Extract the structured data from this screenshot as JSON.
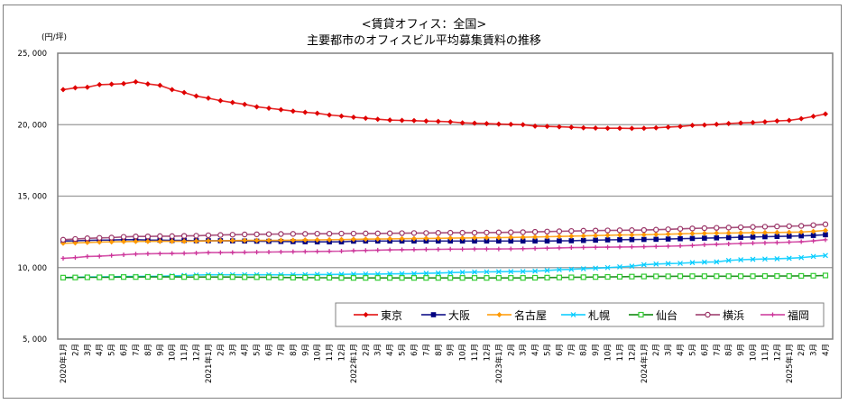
{
  "chart_data": {
    "type": "line",
    "title": "<賃貸オフィス：全国>",
    "subtitle": "主要都市のオフィスビル平均募集賃料の推移",
    "ylabel": "(円/坪)",
    "xlabel": "",
    "ylim": [
      5000,
      25000
    ],
    "yticks": [
      5000,
      10000,
      15000,
      20000,
      25000
    ],
    "ytick_labels": [
      "5, 000",
      "10, 000",
      "15, 000",
      "20, 000",
      "25, 000"
    ],
    "grid": "horizontal major",
    "legend_position": "bottom-right inside plot",
    "x": [
      "2020年1月",
      "2月",
      "3月",
      "4月",
      "5月",
      "6月",
      "7月",
      "8月",
      "9月",
      "10月",
      "11月",
      "12月",
      "2021年1月",
      "2月",
      "3月",
      "4月",
      "5月",
      "6月",
      "7月",
      "8月",
      "9月",
      "10月",
      "11月",
      "12月",
      "2022年1月",
      "2月",
      "3月",
      "4月",
      "5月",
      "6月",
      "7月",
      "8月",
      "9月",
      "10月",
      "11月",
      "12月",
      "2023年1月",
      "2月",
      "3月",
      "4月",
      "5月",
      "6月",
      "7月",
      "8月",
      "9月",
      "10月",
      "11月",
      "12月",
      "2024年1月",
      "2月",
      "3月",
      "4月",
      "5月",
      "6月",
      "7月",
      "8月",
      "9月",
      "10月",
      "11月",
      "12月",
      "2025年1月",
      "2月",
      "3月",
      "4月"
    ],
    "series": [
      {
        "name": "東京",
        "color": "#e00000",
        "marker": "diamond",
        "values": [
          22450,
          22580,
          22620,
          22800,
          22830,
          22870,
          23000,
          22850,
          22750,
          22450,
          22250,
          22000,
          21850,
          21680,
          21550,
          21420,
          21250,
          21150,
          21050,
          20950,
          20870,
          20800,
          20680,
          20600,
          20520,
          20450,
          20380,
          20320,
          20300,
          20280,
          20250,
          20230,
          20200,
          20130,
          20100,
          20070,
          20040,
          20020,
          20000,
          19900,
          19880,
          19850,
          19820,
          19780,
          19760,
          19750,
          19750,
          19740,
          19750,
          19780,
          19830,
          19870,
          19950,
          19980,
          20020,
          20080,
          20120,
          20150,
          20200,
          20260,
          20300,
          20420,
          20580,
          20750
        ]
      },
      {
        "name": "大阪",
        "color": "#000080",
        "marker": "square",
        "values": [
          11850,
          11880,
          11900,
          11920,
          11930,
          11950,
          11950,
          11930,
          11920,
          11900,
          11900,
          11880,
          11880,
          11880,
          11870,
          11860,
          11850,
          11840,
          11830,
          11820,
          11810,
          11800,
          11800,
          11800,
          11850,
          11860,
          11860,
          11860,
          11860,
          11860,
          11860,
          11860,
          11860,
          11860,
          11860,
          11860,
          11860,
          11860,
          11860,
          11860,
          11860,
          11870,
          11880,
          11900,
          11920,
          11940,
          11950,
          11960,
          11970,
          11980,
          12000,
          12020,
          12040,
          12060,
          12080,
          12100,
          12120,
          12140,
          12160,
          12180,
          12200,
          12220,
          12250,
          12300
        ]
      },
      {
        "name": "名古屋",
        "color": "#ff9900",
        "marker": "diamond",
        "values": [
          11700,
          11730,
          11760,
          11780,
          11800,
          11820,
          11830,
          11830,
          11840,
          11840,
          11840,
          11850,
          11870,
          11880,
          11890,
          11900,
          11900,
          11900,
          11910,
          11920,
          11930,
          11940,
          11950,
          11960,
          11980,
          11990,
          12000,
          12010,
          12020,
          12030,
          12040,
          12050,
          12060,
          12070,
          12080,
          12090,
          12100,
          12110,
          12120,
          12140,
          12160,
          12180,
          12200,
          12220,
          12240,
          12260,
          12280,
          12290,
          12300,
          12320,
          12340,
          12360,
          12380,
          12400,
          12410,
          12420,
          12430,
          12440,
          12450,
          12460,
          12470,
          12490,
          12530,
          12600
        ]
      },
      {
        "name": "札幌",
        "color": "#00ccff",
        "marker": "x",
        "values": [
          9300,
          9320,
          9340,
          9350,
          9360,
          9370,
          9380,
          9390,
          9400,
          9420,
          9450,
          9480,
          9500,
          9500,
          9500,
          9500,
          9500,
          9500,
          9500,
          9500,
          9510,
          9520,
          9520,
          9530,
          9540,
          9550,
          9550,
          9560,
          9570,
          9580,
          9600,
          9620,
          9650,
          9670,
          9690,
          9700,
          9710,
          9720,
          9730,
          9750,
          9800,
          9850,
          9880,
          9920,
          9960,
          10000,
          10050,
          10100,
          10200,
          10250,
          10280,
          10300,
          10350,
          10380,
          10400,
          10500,
          10550,
          10580,
          10600,
          10620,
          10650,
          10700,
          10780,
          10850
        ]
      },
      {
        "name": "仙台",
        "color": "#008000",
        "marker": "square-open",
        "values": [
          9300,
          9310,
          9320,
          9320,
          9330,
          9340,
          9340,
          9350,
          9350,
          9350,
          9340,
          9340,
          9340,
          9340,
          9340,
          9330,
          9330,
          9320,
          9310,
          9300,
          9300,
          9290,
          9290,
          9280,
          9280,
          9280,
          9280,
          9280,
          9280,
          9280,
          9280,
          9280,
          9280,
          9280,
          9280,
          9280,
          9280,
          9280,
          9280,
          9290,
          9300,
          9310,
          9320,
          9330,
          9340,
          9350,
          9360,
          9370,
          9380,
          9390,
          9390,
          9400,
          9400,
          9400,
          9400,
          9400,
          9400,
          9400,
          9410,
          9410,
          9410,
          9420,
          9430,
          9450
        ]
      },
      {
        "name": "横浜",
        "color": "#993366",
        "marker": "circle-open",
        "values": [
          11950,
          12000,
          12050,
          12080,
          12100,
          12150,
          12180,
          12180,
          12200,
          12200,
          12220,
          12230,
          12260,
          12280,
          12300,
          12320,
          12330,
          12340,
          12350,
          12360,
          12360,
          12370,
          12370,
          12380,
          12380,
          12390,
          12390,
          12400,
          12410,
          12420,
          12420,
          12430,
          12440,
          12440,
          12440,
          12450,
          12460,
          12470,
          12480,
          12500,
          12520,
          12540,
          12560,
          12580,
          12590,
          12600,
          12610,
          12620,
          12630,
          12650,
          12680,
          12710,
          12740,
          12760,
          12780,
          12800,
          12820,
          12840,
          12860,
          12880,
          12900,
          12920,
          12970,
          13030
        ]
      },
      {
        "name": "福岡",
        "color": "#cc3399",
        "marker": "plus",
        "values": [
          10650,
          10700,
          10780,
          10800,
          10850,
          10900,
          10950,
          10970,
          10980,
          10990,
          11000,
          11020,
          11050,
          11050,
          11060,
          11070,
          11080,
          11090,
          11100,
          11110,
          11120,
          11130,
          11140,
          11150,
          11180,
          11200,
          11220,
          11240,
          11250,
          11260,
          11270,
          11280,
          11290,
          11290,
          11300,
          11300,
          11300,
          11310,
          11320,
          11340,
          11360,
          11380,
          11400,
          11410,
          11420,
          11430,
          11440,
          11450,
          11460,
          11480,
          11500,
          11520,
          11550,
          11600,
          11630,
          11660,
          11690,
          11710,
          11730,
          11750,
          11780,
          11810,
          11870,
          11950
        ]
      }
    ]
  }
}
